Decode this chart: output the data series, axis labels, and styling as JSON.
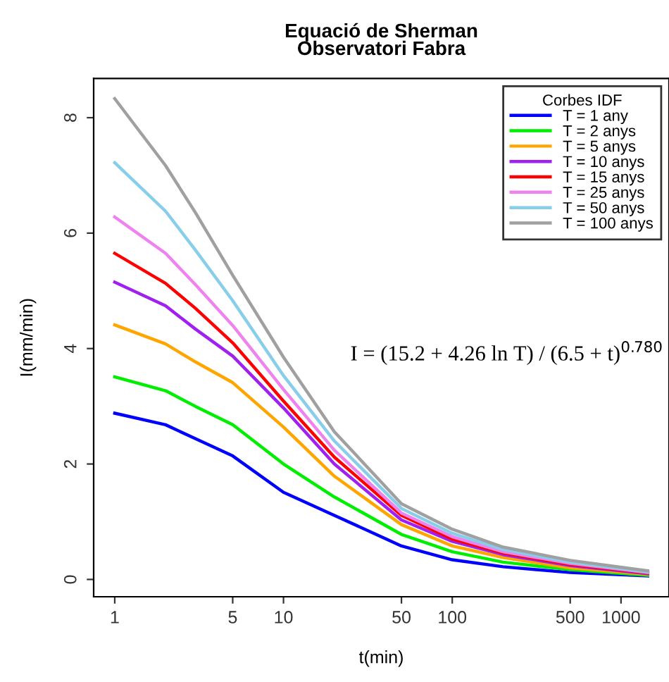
{
  "chart_data": {
    "type": "line",
    "title": "Equació de Sherman\nObservatori Fabra",
    "xlabel": "t(min)",
    "ylabel": "I(mm/min)",
    "legend_title": "Corbes IDF",
    "legend": "top right",
    "grid": false,
    "log": "x",
    "x": [
      1,
      2,
      3,
      5,
      10,
      20,
      50,
      100,
      200,
      500,
      1440
    ],
    "series": [
      {
        "name": "T = 1 any",
        "color": "#0000ff",
        "values": [
          2.88,
          2.68,
          2.44,
          2.14,
          1.51,
          1.11,
          0.58,
          0.34,
          0.22,
          0.12,
          0.06
        ]
      },
      {
        "name": "T = 2 anys",
        "color": "#00ee00",
        "values": [
          3.51,
          3.27,
          3.0,
          2.68,
          2.0,
          1.43,
          0.78,
          0.48,
          0.3,
          0.17,
          0.07
        ]
      },
      {
        "name": "T = 5 anys",
        "color": "#ffa500",
        "values": [
          4.41,
          4.08,
          3.77,
          3.41,
          2.64,
          1.79,
          0.95,
          0.58,
          0.38,
          0.2,
          0.09
        ]
      },
      {
        "name": "T = 10 anys",
        "color": "#a020f0",
        "values": [
          5.15,
          4.74,
          4.34,
          3.87,
          2.97,
          2.0,
          1.03,
          0.66,
          0.43,
          0.24,
          0.1
        ]
      },
      {
        "name": "T = 15 anys",
        "color": "#ff0000",
        "values": [
          5.65,
          5.13,
          4.7,
          4.1,
          3.09,
          2.12,
          1.11,
          0.7,
          0.46,
          0.26,
          0.11
        ]
      },
      {
        "name": "T = 25 anys",
        "color": "#ee82ee",
        "values": [
          6.28,
          5.65,
          5.11,
          4.4,
          3.29,
          2.24,
          1.15,
          0.74,
          0.48,
          0.28,
          0.12
        ]
      },
      {
        "name": "T = 50 anys",
        "color": "#87ceeb",
        "values": [
          7.22,
          6.38,
          5.71,
          4.83,
          3.53,
          2.4,
          1.23,
          0.8,
          0.52,
          0.3,
          0.13
        ]
      },
      {
        "name": "T = 100 anys",
        "color": "#a0a0a0",
        "values": [
          8.33,
          7.17,
          6.36,
          5.27,
          3.85,
          2.56,
          1.31,
          0.87,
          0.56,
          0.33,
          0.15
        ]
      }
    ],
    "xlim": [
      0.75,
      1925
    ],
    "ylim": [
      -0.3,
      8.68
    ],
    "xticks": [
      1,
      5,
      10,
      50,
      100,
      500,
      1000
    ],
    "yticks": [
      0,
      2,
      4,
      6,
      8
    ],
    "annotations": [
      "I = (15.2 + 4.26 ln T) / (6.5 + t)$^{0.780}$"
    ]
  }
}
